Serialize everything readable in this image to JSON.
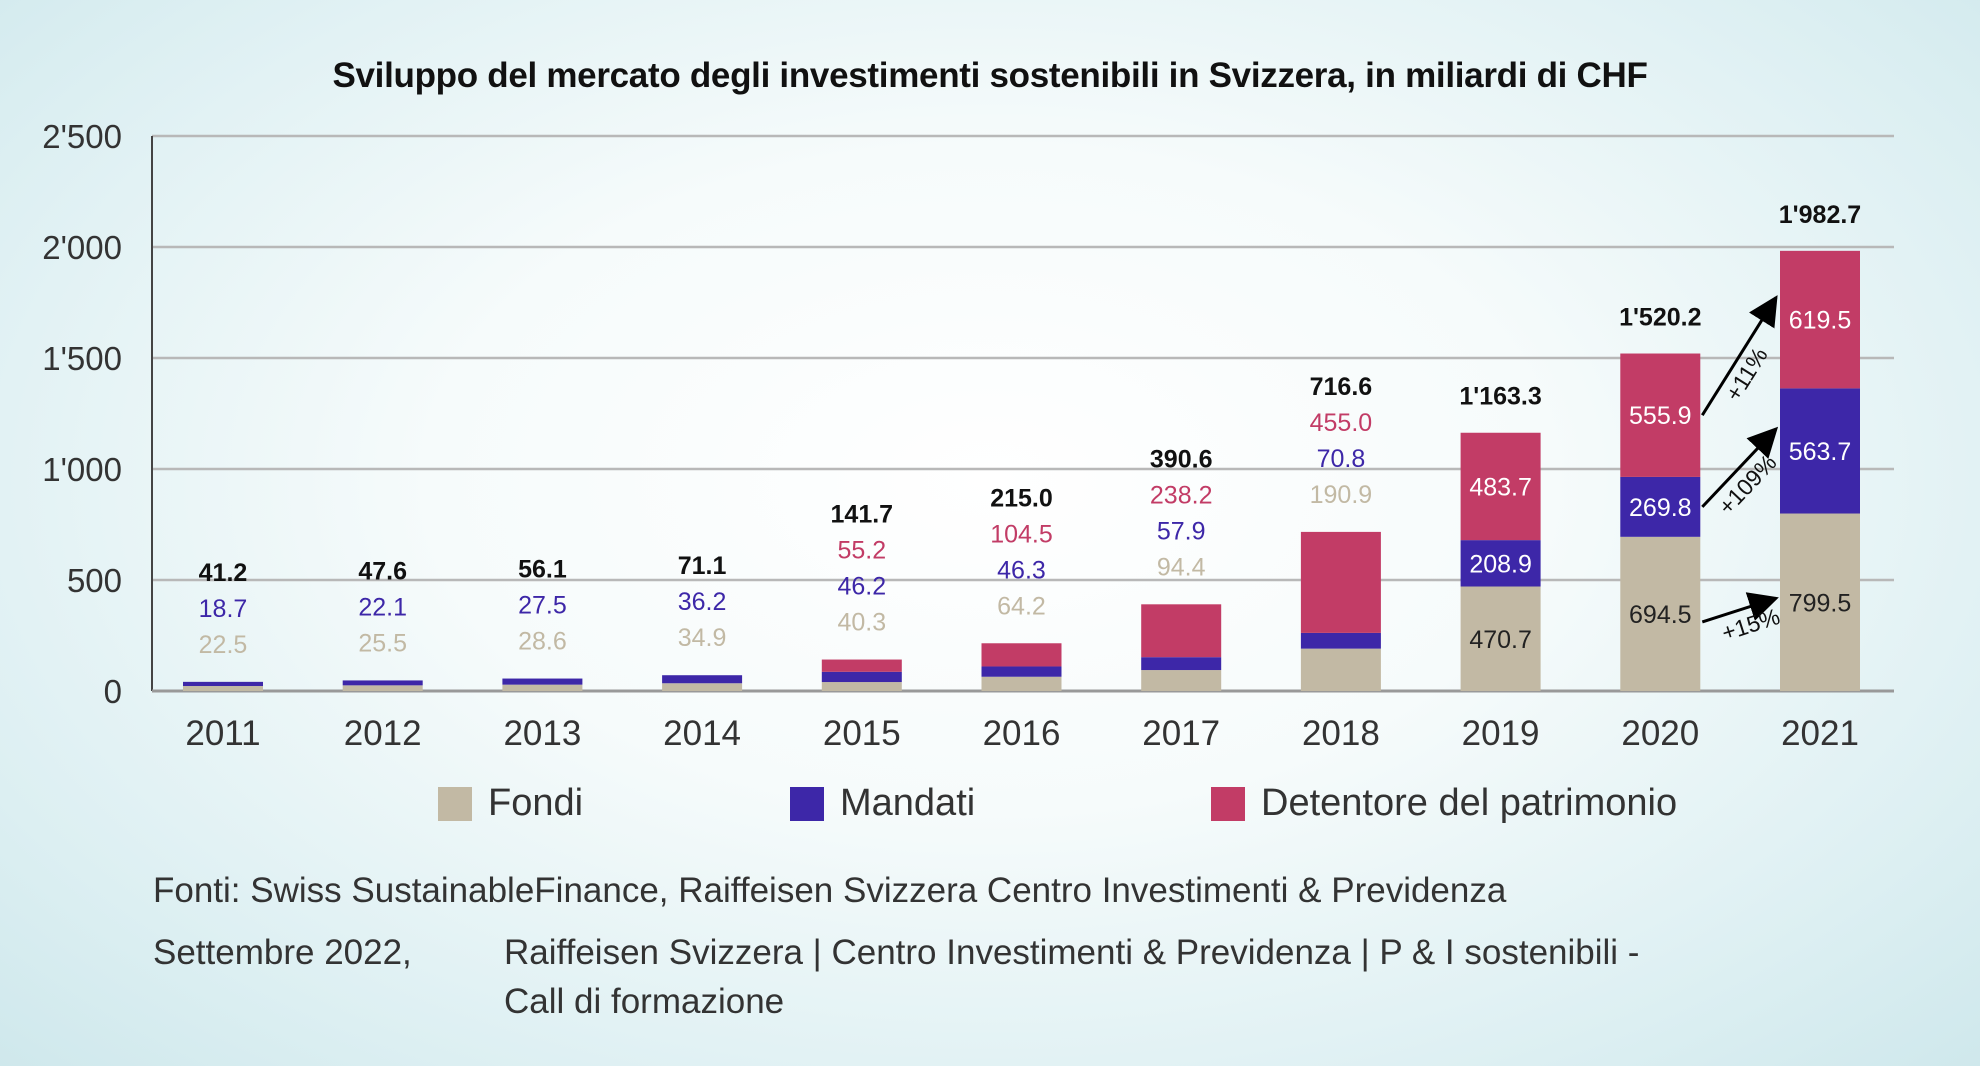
{
  "chart_data": {
    "type": "bar",
    "stacked": true,
    "title": "Sviluppo del mercato degli investimenti sostenibili in Svizzera, in miliardi di CHF",
    "xlabel": "",
    "ylabel": "",
    "ylim": [
      0,
      2500
    ],
    "yticks": [
      0,
      500,
      1000,
      1500,
      2000,
      2500
    ],
    "ytick_labels": [
      "0",
      "500",
      "1'000",
      "1'500",
      "2'000",
      "2'500"
    ],
    "grid": true,
    "legend_position": "bottom",
    "categories": [
      "2011",
      "2012",
      "2013",
      "2014",
      "2015",
      "2016",
      "2017",
      "2018",
      "2019",
      "2020",
      "2021"
    ],
    "series": [
      {
        "name": "Fondi",
        "color": "#c2b9a4",
        "values": [
          22.5,
          25.5,
          28.6,
          34.9,
          40.3,
          64.2,
          94.4,
          190.9,
          470.7,
          694.5,
          799.5
        ]
      },
      {
        "name": "Mandati",
        "color": "#3d27a8",
        "values": [
          18.7,
          22.1,
          27.5,
          36.2,
          46.2,
          46.3,
          57.9,
          70.8,
          208.9,
          269.8,
          563.7
        ]
      },
      {
        "name": "Detentore del patrimonio",
        "color": "#c23c66",
        "values": [
          0,
          0,
          0,
          0,
          55.2,
          104.5,
          238.2,
          455.0,
          483.7,
          555.9,
          619.5
        ]
      }
    ],
    "data_labels": {
      "fondi": [
        "22.5",
        "25.5",
        "28.6",
        "34.9",
        "40.3",
        "64.2",
        "94.4",
        "190.9",
        "470.7",
        "694.5",
        "799.5"
      ],
      "mandati": [
        "18.7",
        "22.1",
        "27.5",
        "36.2",
        "46.2",
        "46.3",
        "57.9",
        "70.8",
        "208.9",
        "269.8",
        "563.7"
      ],
      "detentore": [
        null,
        null,
        null,
        null,
        "55.2",
        "104.5",
        "238.2",
        "455.0",
        "483.7",
        "555.9",
        "619.5"
      ],
      "totals": [
        "41.2",
        "47.6",
        "56.1",
        "71.1",
        "141.7",
        "215.0",
        "390.6",
        "716.6",
        "1'163.3",
        "1'520.2",
        "1'982.7"
      ]
    },
    "annotations": [
      {
        "from": "2020",
        "to": "2021",
        "series": "Detentore del patrimonio",
        "text": "+11%"
      },
      {
        "from": "2020",
        "to": "2021",
        "series": "Mandati",
        "text": "+109%"
      },
      {
        "from": "2020",
        "to": "2021",
        "series": "Fondi",
        "text": "+15%"
      }
    ]
  },
  "footer": {
    "sources": "Fonti: Swiss SustainableFinance, Raiffeisen Svizzera Centro Investimenti & Previdenza",
    "date": "Settembre 2022,",
    "org_line1": "Raiffeisen Svizzera | Centro Investimenti & Previdenza | P & I sostenibili -",
    "org_line2": "Call di formazione"
  },
  "colors": {
    "label_dark": "#111111",
    "axis": "#444444",
    "grid": "#b8b8b8"
  }
}
